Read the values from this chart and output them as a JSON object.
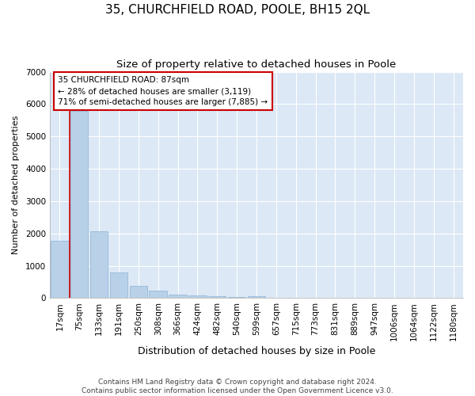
{
  "title": "35, CHURCHFIELD ROAD, POOLE, BH15 2QL",
  "subtitle": "Size of property relative to detached houses in Poole",
  "xlabel": "Distribution of detached houses by size in Poole",
  "ylabel": "Number of detached properties",
  "categories": [
    "17sqm",
    "75sqm",
    "133sqm",
    "191sqm",
    "250sqm",
    "308sqm",
    "366sqm",
    "424sqm",
    "482sqm",
    "540sqm",
    "599sqm",
    "657sqm",
    "715sqm",
    "773sqm",
    "831sqm",
    "889sqm",
    "947sqm",
    "1006sqm",
    "1064sqm",
    "1122sqm",
    "1180sqm"
  ],
  "values": [
    1780,
    5800,
    2070,
    800,
    370,
    235,
    120,
    80,
    55,
    45,
    65,
    0,
    0,
    0,
    0,
    0,
    0,
    0,
    0,
    0,
    0
  ],
  "bar_color": "#b8d0e8",
  "bar_edge_color": "#8ab4d4",
  "vline_color": "#cc0000",
  "vline_x": 0,
  "annotation_text": "35 CHURCHFIELD ROAD: 87sqm\n← 28% of detached houses are smaller (3,119)\n71% of semi-detached houses are larger (7,885) →",
  "annotation_box_edgecolor": "#cc0000",
  "ylim": [
    0,
    7000
  ],
  "yticks": [
    0,
    1000,
    2000,
    3000,
    4000,
    5000,
    6000,
    7000
  ],
  "fig_bg_color": "#ffffff",
  "plot_bg_color": "#dce8f5",
  "grid_color": "#ffffff",
  "footer_line1": "Contains HM Land Registry data © Crown copyright and database right 2024.",
  "footer_line2": "Contains public sector information licensed under the Open Government Licence v3.0.",
  "title_fontsize": 11,
  "subtitle_fontsize": 9.5,
  "xlabel_fontsize": 9,
  "ylabel_fontsize": 8,
  "tick_fontsize": 7.5,
  "footer_fontsize": 6.5,
  "annotation_fontsize": 7.5
}
